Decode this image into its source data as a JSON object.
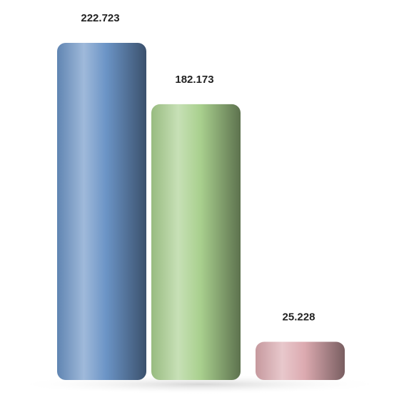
{
  "chart_data": {
    "type": "bar",
    "categories": [
      null,
      null,
      null
    ],
    "values": [
      222.723,
      182.173,
      25.228
    ],
    "colors": [
      "#6b94c6",
      "#a9d08e",
      "#dcaab0"
    ]
  }
}
